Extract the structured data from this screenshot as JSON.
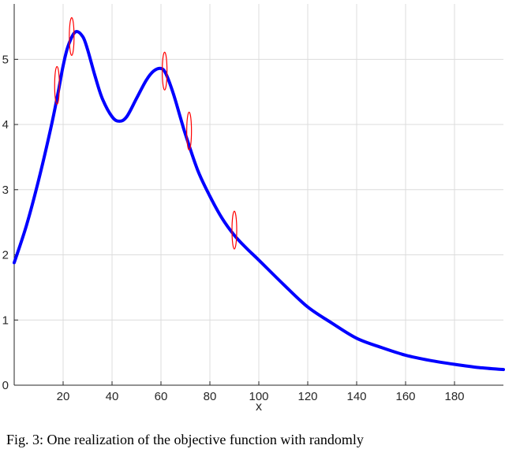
{
  "chart_data": {
    "type": "line",
    "xlabel": "x",
    "ylabel": "",
    "title": "",
    "xlim": [
      0,
      200
    ],
    "ylim": [
      0,
      5.85
    ],
    "xticks": [
      20,
      40,
      60,
      80,
      100,
      120,
      140,
      160,
      180
    ],
    "yticks": [
      0,
      1,
      2,
      3,
      4,
      5
    ],
    "grid": true,
    "series": [
      {
        "color": "#0000ff",
        "x": [
          0,
          5,
          10,
          15,
          18,
          20,
          22,
          25,
          28,
          30,
          33,
          36,
          40,
          43,
          46,
          50,
          54,
          57,
          60,
          62,
          65,
          68,
          70,
          75,
          80,
          85,
          90,
          95,
          100,
          110,
          120,
          130,
          140,
          150,
          160,
          170,
          180,
          190,
          200
        ],
        "y": [
          1.88,
          2.45,
          3.15,
          3.95,
          4.5,
          4.9,
          5.2,
          5.42,
          5.35,
          5.15,
          4.75,
          4.4,
          4.12,
          4.05,
          4.12,
          4.4,
          4.68,
          4.82,
          4.86,
          4.78,
          4.48,
          4.1,
          3.85,
          3.3,
          2.9,
          2.56,
          2.3,
          2.1,
          1.92,
          1.55,
          1.2,
          0.95,
          0.72,
          0.58,
          0.46,
          0.38,
          0.32,
          0.27,
          0.24
        ]
      }
    ],
    "markers": {
      "color": "#ff0000",
      "shape": "ellipse",
      "points": [
        {
          "x": 17.5,
          "y": 4.6
        },
        {
          "x": 23.5,
          "y": 5.35
        },
        {
          "x": 61.5,
          "y": 4.82
        },
        {
          "x": 71.5,
          "y": 3.9
        },
        {
          "x": 90,
          "y": 2.38
        }
      ]
    }
  },
  "caption": "Fig. 3: One realization of the objective function with randomly"
}
